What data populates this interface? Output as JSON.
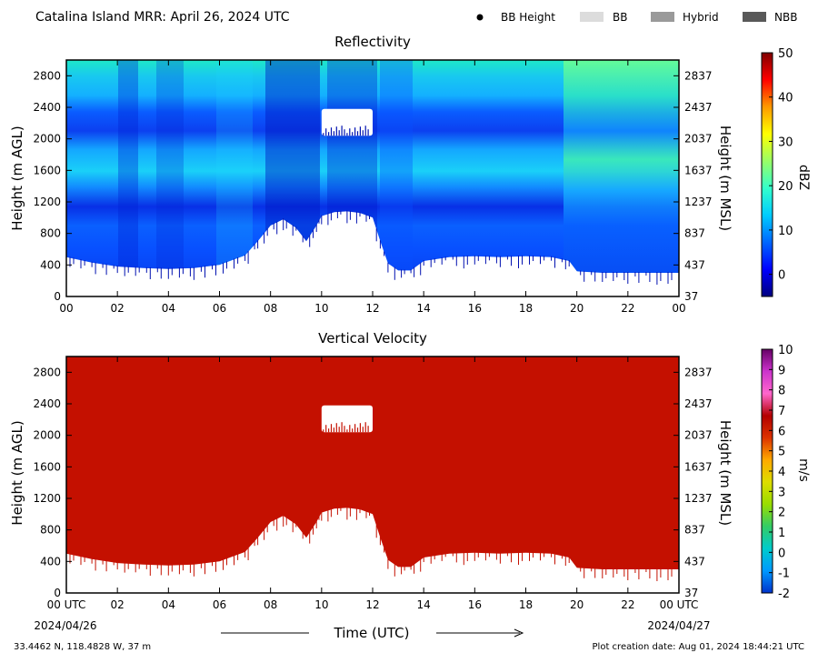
{
  "header": {
    "title": "Catalina Island MRR:  April 26, 2024 UTC",
    "legend": [
      {
        "label": "BB Height",
        "symbol": "dot",
        "color": "#000000"
      },
      {
        "label": "BB",
        "symbol": "swatch",
        "color": "#dcdcdc"
      },
      {
        "label": "Hybrid",
        "symbol": "swatch",
        "color": "#9a9a9a"
      },
      {
        "label": "NBB",
        "symbol": "swatch",
        "color": "#595959"
      }
    ]
  },
  "footer": {
    "coords": "33.4462 N, 118.4828 W, 37 m",
    "creation": "Plot creation date: Aug 01, 2024 18:44:21 UTC",
    "xlabel": "Time (UTC)",
    "start_date": "2024/04/26",
    "end_date": "2024/04/27"
  },
  "chart_data": [
    {
      "type": "heatmap",
      "title": "Reflectivity",
      "ylabel": "Height (m AGL)",
      "ylabel_right": "Height (m MSL)",
      "colorbar_label": "dBZ",
      "x_ticks": [
        "00",
        "02",
        "04",
        "06",
        "08",
        "10",
        "12",
        "14",
        "16",
        "18",
        "20",
        "22",
        "00"
      ],
      "x_range_hours": [
        0,
        24
      ],
      "y_ticks": [
        0,
        400,
        800,
        1200,
        1600,
        2000,
        2400,
        2800
      ],
      "y_ticks_right": [
        "37",
        "437",
        "837",
        "1237",
        "1637",
        "2037",
        "2437",
        "2837"
      ],
      "y_range": [
        0,
        3000
      ],
      "colorbar_ticks": [
        0,
        10,
        20,
        30,
        40,
        50
      ],
      "colorbar_range": [
        -5,
        50
      ],
      "colormap": [
        "#00007f",
        "#0000ff",
        "#0066ff",
        "#00ccff",
        "#33ffcc",
        "#99ff66",
        "#ffff00",
        "#ff9900",
        "#ff0000",
        "#7f0000"
      ],
      "echo_base_m": [
        [
          0,
          500
        ],
        [
          1,
          430
        ],
        [
          2,
          380
        ],
        [
          3,
          360
        ],
        [
          4,
          350
        ],
        [
          5,
          360
        ],
        [
          6,
          400
        ],
        [
          7,
          520
        ],
        [
          7.5,
          700
        ],
        [
          8,
          900
        ],
        [
          8.5,
          980
        ],
        [
          9,
          870
        ],
        [
          9.4,
          700
        ],
        [
          9.8,
          900
        ],
        [
          10,
          1020
        ],
        [
          10.5,
          1070
        ],
        [
          11,
          1080
        ],
        [
          11.5,
          1060
        ],
        [
          12,
          1000
        ],
        [
          12.3,
          700
        ],
        [
          12.6,
          420
        ],
        [
          13,
          330
        ],
        [
          13.5,
          330
        ],
        [
          14,
          450
        ],
        [
          15,
          500
        ],
        [
          16,
          510
        ],
        [
          17,
          500
        ],
        [
          18,
          510
        ],
        [
          19,
          500
        ],
        [
          19.7,
          450
        ],
        [
          20,
          320
        ],
        [
          21,
          300
        ],
        [
          22,
          300
        ],
        [
          24,
          300
        ]
      ],
      "echo_top_m": 3000,
      "gap": {
        "x": [
          10,
          12
        ],
        "y": [
          2040,
          2380
        ]
      },
      "description_bands": "layered reflectivity mostly 0–15 dBZ"
    },
    {
      "type": "heatmap",
      "title": "Vertical Velocity",
      "ylabel": "Height (m AGL)",
      "ylabel_right": "Height (m MSL)",
      "colorbar_label": "m/s",
      "x_ticks": [
        "00 UTC",
        "02",
        "04",
        "06",
        "08",
        "10",
        "12",
        "14",
        "16",
        "18",
        "20",
        "22",
        "00 UTC"
      ],
      "x_range_hours": [
        0,
        24
      ],
      "y_ticks": [
        0,
        400,
        800,
        1200,
        1600,
        2000,
        2400,
        2800
      ],
      "y_ticks_right": [
        "37",
        "437",
        "837",
        "1237",
        "1637",
        "2037",
        "2437",
        "2837"
      ],
      "y_range": [
        0,
        3000
      ],
      "colorbar_ticks": [
        -2,
        -1,
        0,
        1,
        2,
        3,
        4,
        5,
        6,
        7,
        8,
        9,
        10
      ],
      "colorbar_range": [
        -2,
        10
      ],
      "colormap": [
        "#0033cc",
        "#0099ff",
        "#00cccc",
        "#33cc66",
        "#99dd00",
        "#dddd00",
        "#ffaa00",
        "#dd3300",
        "#b30000",
        "#ff66cc",
        "#cc33cc",
        "#660066"
      ],
      "fill_color": "#c41000"
    }
  ]
}
